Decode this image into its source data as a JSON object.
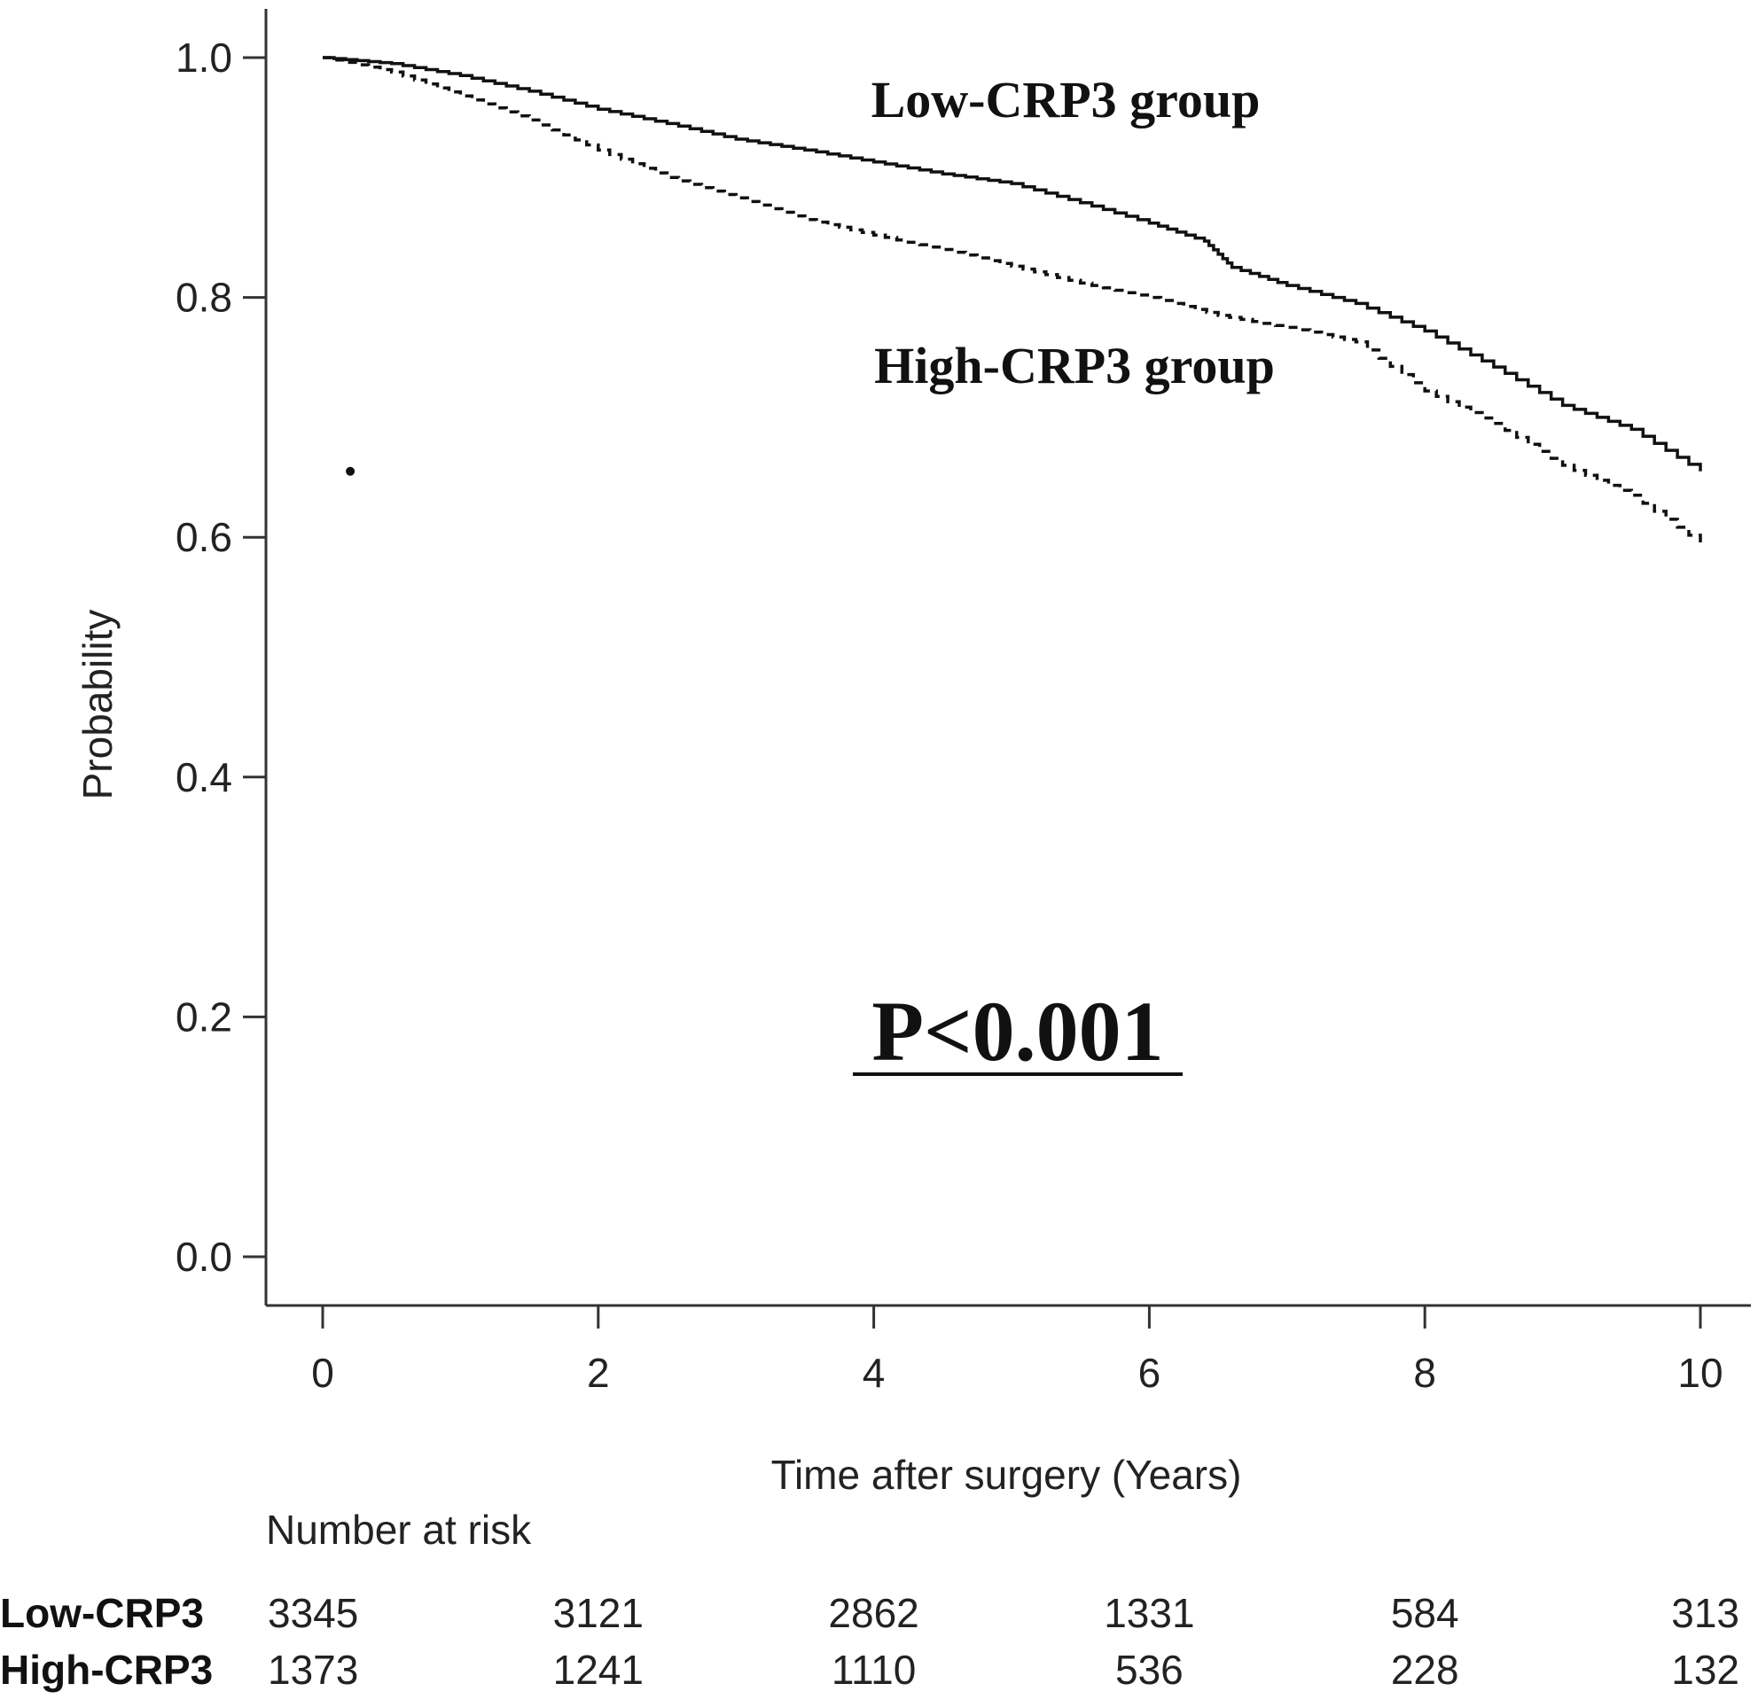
{
  "chart_data": {
    "type": "line",
    "title": "",
    "xlabel": "Time after surgery (Years)",
    "ylabel": "Probability",
    "xlim": [
      0,
      10
    ],
    "ylim": [
      0,
      1
    ],
    "x_ticks": [
      0,
      2,
      4,
      6,
      8,
      10
    ],
    "y_ticks": [
      0.0,
      0.2,
      0.4,
      0.6,
      0.8,
      1.0
    ],
    "x_tick_labels": [
      "0",
      "2",
      "4",
      "6",
      "8",
      "10"
    ],
    "y_tick_labels": [
      "0.0",
      "0.2",
      "0.4",
      "0.6",
      "0.8",
      "1.0"
    ],
    "grid": false,
    "series": [
      {
        "name": "Low-CRP3 group",
        "line_style": "solid",
        "x": [
          0,
          0.5,
          1,
          1.5,
          2,
          2.5,
          3,
          3.5,
          4,
          4.5,
          5,
          5.5,
          6,
          6.4,
          6.6,
          7,
          7.5,
          8,
          8.5,
          9,
          9.5,
          10
        ],
        "y": [
          1.0,
          0.995,
          0.985,
          0.972,
          0.957,
          0.945,
          0.932,
          0.923,
          0.913,
          0.903,
          0.895,
          0.879,
          0.862,
          0.847,
          0.825,
          0.81,
          0.795,
          0.772,
          0.742,
          0.71,
          0.69,
          0.655
        ]
      },
      {
        "name": "High-CRP3 group",
        "line_style": "dashed",
        "x": [
          0,
          0.5,
          1,
          1.5,
          2,
          2.5,
          3,
          3.5,
          4,
          4.5,
          5,
          5.5,
          6,
          6.5,
          7,
          7.5,
          8,
          8.5,
          9,
          9.5,
          10
        ],
        "y": [
          1.0,
          0.988,
          0.968,
          0.948,
          0.923,
          0.9,
          0.883,
          0.865,
          0.852,
          0.84,
          0.826,
          0.812,
          0.8,
          0.785,
          0.775,
          0.763,
          0.722,
          0.695,
          0.66,
          0.635,
          0.595
        ]
      }
    ],
    "censor_mark": {
      "x": 0.2,
      "y": 0.655
    },
    "annotations": {
      "p_value": "P<0.001"
    },
    "risk_table": {
      "header": "Number at risk",
      "rows": [
        {
          "label": "Low-CRP3",
          "values": [
            "3345",
            "3121",
            "2862",
            "1331",
            "584",
            "313"
          ]
        },
        {
          "label": "High-CRP3",
          "values": [
            "1373",
            "1241",
            "1110",
            "536",
            "228",
            "132"
          ]
        }
      ]
    }
  }
}
